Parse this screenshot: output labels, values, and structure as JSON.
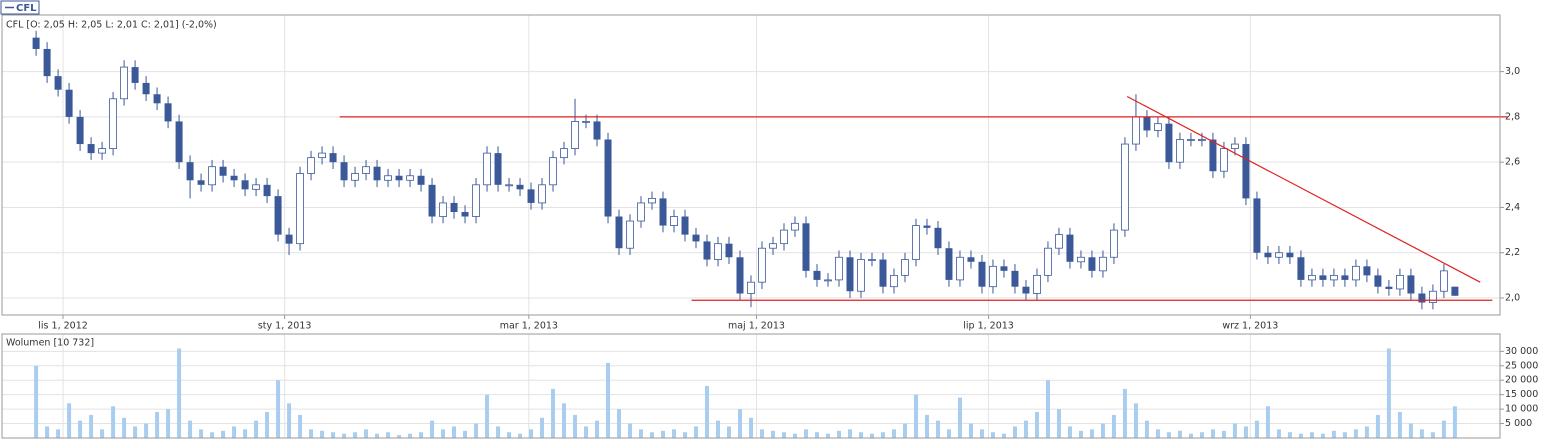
{
  "chart_data": [
    {
      "type": "candlestick",
      "legend": "CFL",
      "info": "CFL [O: 2,05  H: 2,05  L: 2,01  C: 2,01] (-2,0%)",
      "categories": [
        null,
        null,
        null,
        null,
        null,
        null,
        null,
        null,
        null,
        null,
        null,
        null,
        null,
        null,
        null,
        null,
        null,
        null,
        null,
        null,
        null,
        null,
        null,
        null,
        null,
        null,
        null,
        null,
        null,
        null,
        null,
        null,
        null,
        null,
        null,
        null,
        null,
        null,
        null,
        null,
        null,
        null,
        null,
        null,
        null,
        null,
        null,
        null,
        null,
        null,
        null,
        null,
        null,
        null,
        null,
        null,
        null,
        null,
        null,
        null,
        null,
        null,
        null,
        null,
        null,
        null,
        null,
        null,
        null,
        null,
        null,
        null,
        null,
        null,
        null,
        null,
        null,
        null,
        null,
        null,
        null,
        null,
        null,
        null,
        null,
        null,
        null,
        null,
        null,
        null,
        null,
        null,
        null,
        null,
        null,
        null,
        null,
        null,
        null,
        null,
        null,
        null,
        null,
        null,
        null,
        null,
        null,
        null,
        null,
        null,
        null,
        null,
        null,
        null,
        null,
        null,
        null,
        null,
        null,
        null,
        null,
        null,
        null,
        null,
        null,
        null,
        null,
        null,
        null,
        null
      ],
      "open": [
        3.15,
        3.1,
        2.98,
        2.92,
        2.8,
        2.68,
        2.64,
        2.66,
        2.88,
        3.02,
        2.95,
        2.9,
        2.86,
        2.78,
        2.6,
        2.52,
        2.5,
        2.58,
        2.54,
        2.52,
        2.48,
        2.5,
        2.45,
        2.28,
        2.24,
        2.55,
        2.62,
        2.64,
        2.6,
        2.52,
        2.55,
        2.58,
        2.52,
        2.54,
        2.52,
        2.54,
        2.5,
        2.36,
        2.42,
        2.38,
        2.36,
        2.5,
        2.64,
        2.5,
        2.5,
        2.48,
        2.42,
        2.5,
        2.62,
        2.66,
        2.78,
        2.78,
        2.7,
        2.36,
        2.22,
        2.34,
        2.42,
        2.44,
        2.32,
        2.36,
        2.28,
        2.25,
        2.17,
        2.24,
        2.18,
        2.02,
        2.07,
        2.22,
        2.24,
        2.3,
        2.33,
        2.12,
        2.08,
        2.08,
        2.18,
        2.03,
        2.17,
        2.17,
        2.05,
        2.1,
        2.17,
        2.32,
        2.31,
        2.22,
        2.08,
        2.18,
        2.16,
        2.05,
        2.14,
        2.12,
        2.05,
        2.02,
        2.1,
        2.22,
        2.28,
        2.16,
        2.18,
        2.12,
        2.18,
        2.3,
        2.68,
        2.8,
        2.74,
        2.77,
        2.6,
        2.7,
        2.7,
        2.7,
        2.56,
        2.66,
        2.68,
        2.44,
        2.2,
        2.18,
        2.2,
        2.18,
        2.08,
        2.1,
        2.08,
        2.1,
        2.08,
        2.14,
        2.1,
        2.05,
        2.04,
        2.1,
        2.02,
        1.98,
        2.03,
        2.05
      ],
      "high": [
        3.18,
        3.13,
        3.01,
        2.95,
        2.83,
        2.71,
        2.69,
        2.91,
        3.05,
        3.05,
        2.98,
        2.93,
        2.89,
        2.81,
        2.63,
        2.55,
        2.61,
        2.61,
        2.57,
        2.55,
        2.53,
        2.53,
        2.48,
        2.31,
        2.58,
        2.65,
        2.67,
        2.67,
        2.63,
        2.58,
        2.61,
        2.61,
        2.57,
        2.57,
        2.57,
        2.57,
        2.53,
        2.45,
        2.45,
        2.41,
        2.53,
        2.67,
        2.67,
        2.53,
        2.53,
        2.51,
        2.53,
        2.65,
        2.69,
        2.88,
        2.81,
        2.81,
        2.73,
        2.39,
        2.37,
        2.45,
        2.47,
        2.47,
        2.39,
        2.39,
        2.31,
        2.28,
        2.27,
        2.27,
        2.21,
        2.1,
        2.25,
        2.27,
        2.33,
        2.36,
        2.36,
        2.15,
        2.11,
        2.21,
        2.21,
        2.2,
        2.2,
        2.2,
        2.13,
        2.2,
        2.35,
        2.35,
        2.34,
        2.25,
        2.21,
        2.21,
        2.19,
        2.17,
        2.17,
        2.15,
        2.08,
        2.13,
        2.25,
        2.31,
        2.31,
        2.21,
        2.21,
        2.21,
        2.33,
        2.71,
        2.9,
        2.83,
        2.8,
        2.8,
        2.73,
        2.73,
        2.73,
        2.73,
        2.69,
        2.71,
        2.71,
        2.47,
        2.23,
        2.23,
        2.23,
        2.21,
        2.13,
        2.13,
        2.13,
        2.13,
        2.17,
        2.17,
        2.13,
        2.08,
        2.13,
        2.13,
        2.05,
        2.06,
        2.15,
        2.05
      ],
      "low": [
        3.07,
        2.95,
        2.89,
        2.77,
        2.65,
        2.61,
        2.61,
        2.63,
        2.85,
        2.92,
        2.87,
        2.83,
        2.75,
        2.57,
        2.44,
        2.47,
        2.47,
        2.51,
        2.49,
        2.45,
        2.45,
        2.42,
        2.25,
        2.19,
        2.21,
        2.52,
        2.59,
        2.57,
        2.49,
        2.49,
        2.52,
        2.49,
        2.49,
        2.49,
        2.49,
        2.47,
        2.33,
        2.33,
        2.35,
        2.33,
        2.33,
        2.47,
        2.47,
        2.47,
        2.45,
        2.39,
        2.39,
        2.47,
        2.59,
        2.63,
        2.75,
        2.67,
        2.33,
        2.19,
        2.19,
        2.31,
        2.39,
        2.29,
        2.29,
        2.25,
        2.22,
        2.14,
        2.14,
        2.15,
        1.99,
        1.96,
        2.04,
        2.19,
        2.21,
        2.27,
        2.09,
        2.05,
        2.05,
        2.05,
        2.0,
        2.0,
        2.14,
        2.02,
        2.02,
        2.07,
        2.14,
        2.28,
        2.19,
        2.05,
        2.05,
        2.13,
        2.02,
        2.02,
        2.09,
        2.02,
        1.99,
        1.99,
        2.07,
        2.19,
        2.13,
        2.13,
        2.09,
        2.09,
        2.15,
        2.27,
        2.65,
        2.71,
        2.71,
        2.57,
        2.57,
        2.67,
        2.67,
        2.53,
        2.53,
        2.63,
        2.41,
        2.17,
        2.15,
        2.15,
        2.15,
        2.05,
        2.05,
        2.05,
        2.05,
        2.05,
        2.05,
        2.07,
        2.02,
        2.01,
        2.01,
        1.99,
        1.95,
        1.95,
        2.0,
        2.01
      ],
      "close": [
        3.1,
        2.98,
        2.92,
        2.8,
        2.68,
        2.64,
        2.66,
        2.88,
        3.02,
        2.95,
        2.9,
        2.86,
        2.78,
        2.6,
        2.52,
        2.5,
        2.58,
        2.54,
        2.52,
        2.48,
        2.5,
        2.45,
        2.28,
        2.24,
        2.55,
        2.62,
        2.64,
        2.6,
        2.52,
        2.55,
        2.58,
        2.52,
        2.54,
        2.52,
        2.54,
        2.5,
        2.36,
        2.42,
        2.38,
        2.36,
        2.5,
        2.64,
        2.5,
        2.5,
        2.48,
        2.42,
        2.5,
        2.62,
        2.66,
        2.78,
        2.78,
        2.7,
        2.36,
        2.22,
        2.34,
        2.42,
        2.44,
        2.32,
        2.36,
        2.28,
        2.25,
        2.17,
        2.24,
        2.18,
        2.02,
        2.07,
        2.22,
        2.24,
        2.3,
        2.33,
        2.12,
        2.08,
        2.08,
        2.18,
        2.03,
        2.17,
        2.17,
        2.05,
        2.1,
        2.17,
        2.32,
        2.31,
        2.22,
        2.08,
        2.18,
        2.16,
        2.05,
        2.14,
        2.12,
        2.05,
        2.02,
        2.1,
        2.22,
        2.28,
        2.16,
        2.18,
        2.12,
        2.18,
        2.3,
        2.68,
        2.8,
        2.74,
        2.77,
        2.6,
        2.7,
        2.7,
        2.7,
        2.56,
        2.66,
        2.68,
        2.44,
        2.2,
        2.18,
        2.2,
        2.18,
        2.08,
        2.1,
        2.08,
        2.1,
        2.08,
        2.14,
        2.1,
        2.05,
        2.04,
        2.1,
        2.02,
        1.98,
        2.03,
        2.12,
        2.01
      ],
      "color_up": "#ffffff",
      "color_down": "#3b5998",
      "xlim": [
        -3.1,
        133.1
      ],
      "xticks": [
        {
          "value": 2.45,
          "label": "lis 1, 2012"
        },
        {
          "value": 22.6,
          "label": "sty 1, 2013"
        },
        {
          "value": 44.8,
          "label": "mar 1, 2013"
        },
        {
          "value": 65.5,
          "label": "maj 1, 2013"
        },
        {
          "value": 86.6,
          "label": "lip 1, 2013"
        },
        {
          "value": 110.4,
          "label": "wrz 1, 2013"
        }
      ],
      "ylim": [
        1.925,
        3.25
      ],
      "yticks": [
        {
          "value": 2.0,
          "label": "2,0"
        },
        {
          "value": 2.2,
          "label": "2,2"
        },
        {
          "value": 2.4,
          "label": "2,4"
        },
        {
          "value": 2.6,
          "label": "2,6"
        },
        {
          "value": 2.8,
          "label": "2,8"
        },
        {
          "value": 3.0,
          "label": "3,0"
        }
      ],
      "grid": true,
      "lines": [
        {
          "x": [
            27.6,
            133.8
          ],
          "y": [
            2.8,
            2.8
          ],
          "color": "#e02020"
        },
        {
          "x": [
            59.6,
            132.4
          ],
          "y": [
            1.99,
            1.99
          ],
          "color": "#e02020"
        },
        {
          "x": [
            99.2,
            131.3
          ],
          "y": [
            2.89,
            2.07
          ],
          "color": "#e02020"
        }
      ]
    },
    {
      "type": "bar",
      "title": "Wolumen [10 732]",
      "values": [
        25000,
        4000,
        3000,
        12000,
        6000,
        8000,
        3000,
        11000,
        7000,
        4000,
        5000,
        9000,
        10000,
        31000,
        6000,
        3000,
        2000,
        2500,
        4000,
        3000,
        6000,
        9000,
        20000,
        12000,
        8000,
        3000,
        2500,
        2000,
        1500,
        2000,
        3000,
        1500,
        2000,
        1000,
        1500,
        2000,
        6000,
        3000,
        4000,
        2500,
        5000,
        15000,
        4000,
        2000,
        1500,
        3000,
        7000,
        17000,
        12000,
        8000,
        4000,
        6000,
        26000,
        10000,
        5000,
        3000,
        2000,
        2500,
        3000,
        2000,
        4000,
        18000,
        6000,
        4000,
        10000,
        7000,
        3000,
        2500,
        2000,
        1500,
        3000,
        2000,
        1500,
        2500,
        3000,
        2000,
        1500,
        2000,
        3000,
        5000,
        15000,
        8000,
        6000,
        3000,
        14000,
        5000,
        3000,
        2000,
        1500,
        4000,
        6000,
        9000,
        20000,
        10000,
        4000,
        2500,
        3000,
        5000,
        8000,
        17000,
        12000,
        6000,
        3000,
        2000,
        2500,
        1500,
        2000,
        3000,
        2500,
        5000,
        4000,
        6000,
        11000,
        3000,
        2000,
        1500,
        2000,
        1500,
        2500,
        2000,
        3000,
        4000,
        8000,
        31000,
        9000,
        5000,
        3000,
        2000,
        6000,
        11000
      ],
      "color": "#a9cdef",
      "ylim": [
        0,
        36000
      ],
      "yticks": [
        {
          "value": 5000,
          "label": "5 000"
        },
        {
          "value": 10000,
          "label": "10 000"
        },
        {
          "value": 15000,
          "label": "15 000"
        },
        {
          "value": 20000,
          "label": "20 000"
        },
        {
          "value": 25000,
          "label": "25 000"
        },
        {
          "value": 30000,
          "label": "30 000"
        }
      ],
      "grid": true
    }
  ]
}
